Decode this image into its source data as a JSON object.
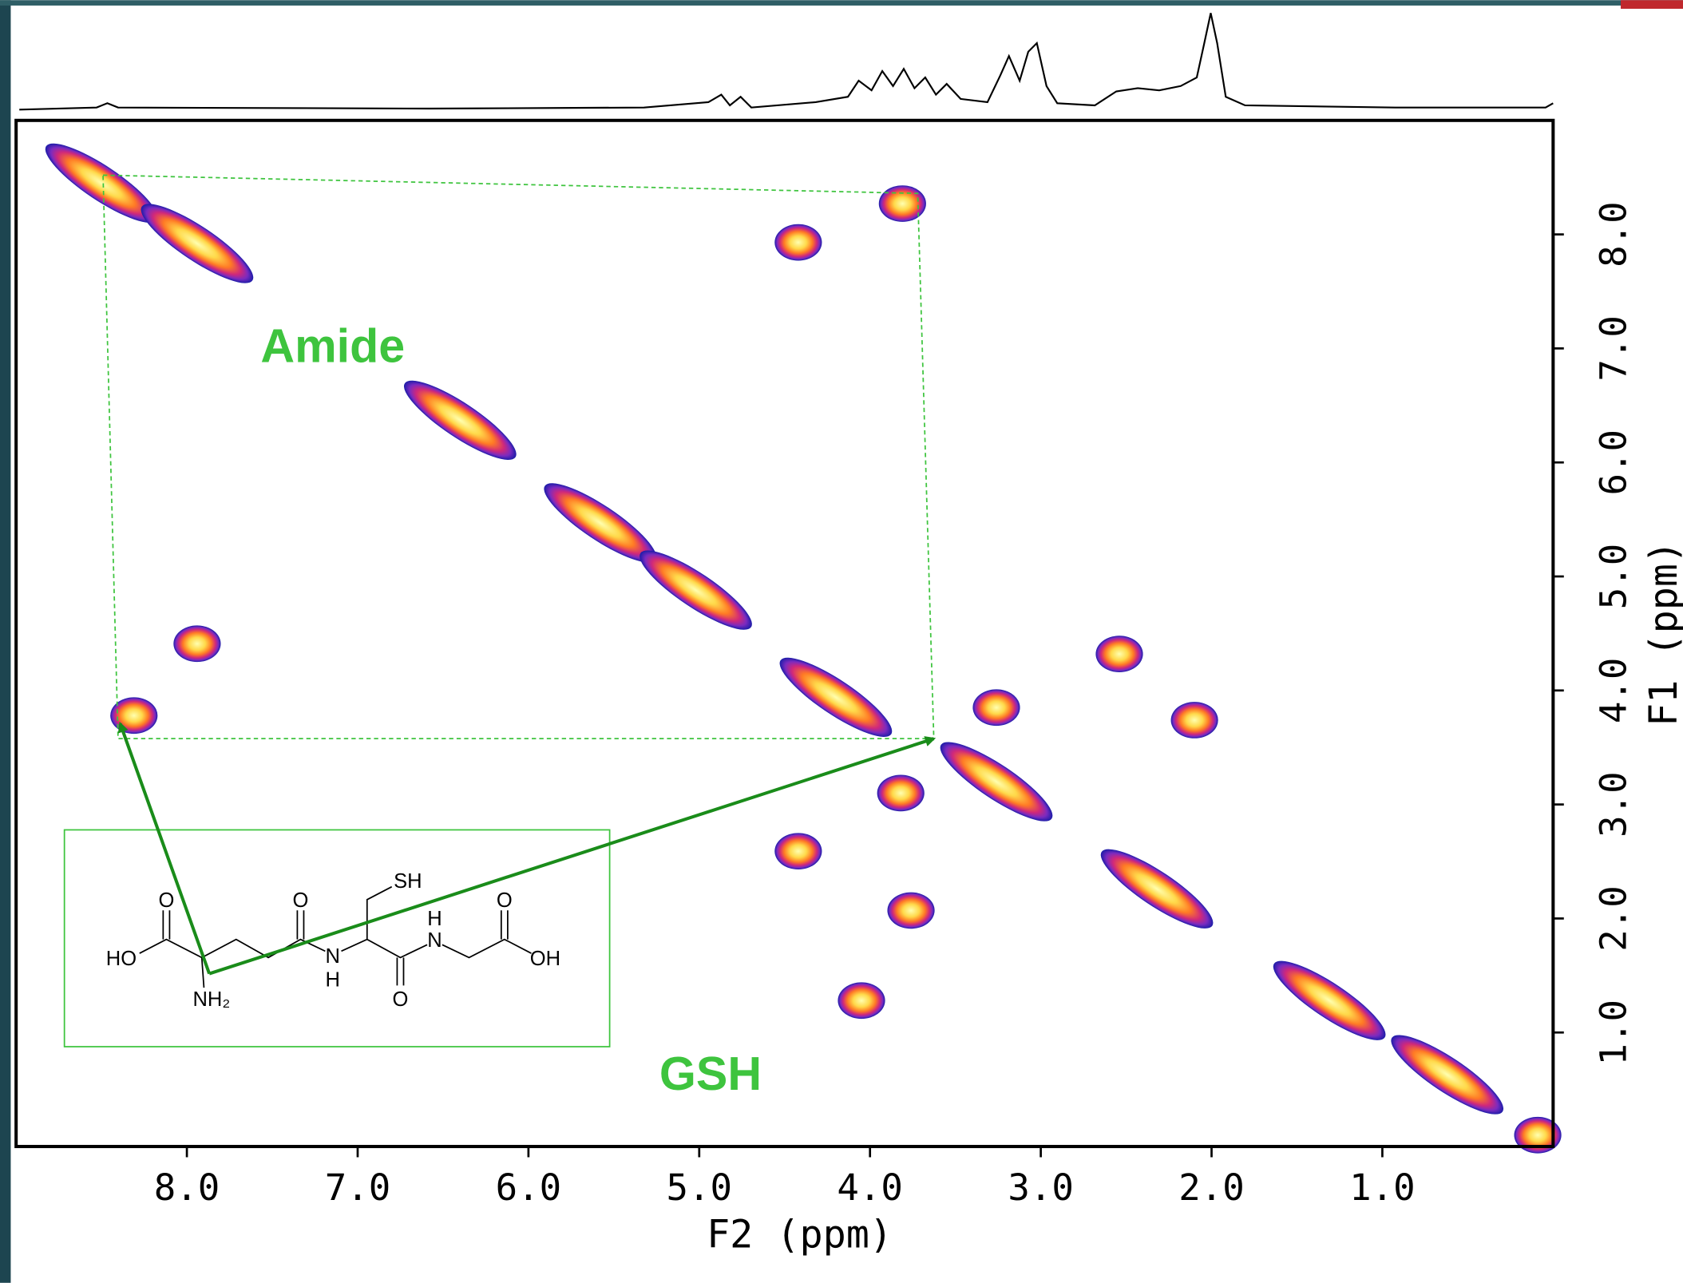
{
  "chart_data": {
    "type": "contour",
    "xlabel": "F2 (ppm)",
    "ylabel": "F1 (ppm)",
    "xlim": [
      9,
      0
    ],
    "ylim": [
      0,
      9
    ],
    "xticks": [
      {
        "value": 8,
        "label": "8.0"
      },
      {
        "value": 7,
        "label": "7.0"
      },
      {
        "value": 6,
        "label": "6.0"
      },
      {
        "value": 5,
        "label": "5.0"
      },
      {
        "value": 4,
        "label": "4.0"
      },
      {
        "value": 3,
        "label": "3.0"
      },
      {
        "value": 2,
        "label": "2.0"
      },
      {
        "value": 1,
        "label": "1.0"
      }
    ],
    "yticks": [
      {
        "value": 1,
        "label": "1.0"
      },
      {
        "value": 2,
        "label": "2.0"
      },
      {
        "value": 3,
        "label": "3.0"
      },
      {
        "value": 4,
        "label": "4.0"
      },
      {
        "value": 5,
        "label": "5.0"
      },
      {
        "value": 6,
        "label": "6.0"
      },
      {
        "value": 7,
        "label": "7.0"
      },
      {
        "value": 8,
        "label": "8.0"
      }
    ],
    "x": [
      8.5,
      7.94,
      3.81,
      4.42,
      7.94,
      8.31,
      6.4,
      5.58,
      5.02,
      4.2,
      3.26,
      2.32,
      1.31,
      2.54,
      2.1,
      3.26,
      4.42,
      3.76,
      3.82,
      4.05,
      0.62,
      0.09
    ],
    "values": [
      8.45,
      7.92,
      8.27,
      7.93,
      4.41,
      3.78,
      6.37,
      5.47,
      4.88,
      3.94,
      3.2,
      2.26,
      1.28,
      4.32,
      3.74,
      3.85,
      2.59,
      2.07,
      3.1,
      1.28,
      0.63,
      0.1
    ],
    "annotations": [
      "Amide",
      "GSH"
    ],
    "structure_labels": [
      "SH",
      "O",
      "O",
      "O",
      "HO",
      "NH₂",
      "N",
      "H",
      "N",
      "H",
      "O",
      "OH"
    ]
  }
}
